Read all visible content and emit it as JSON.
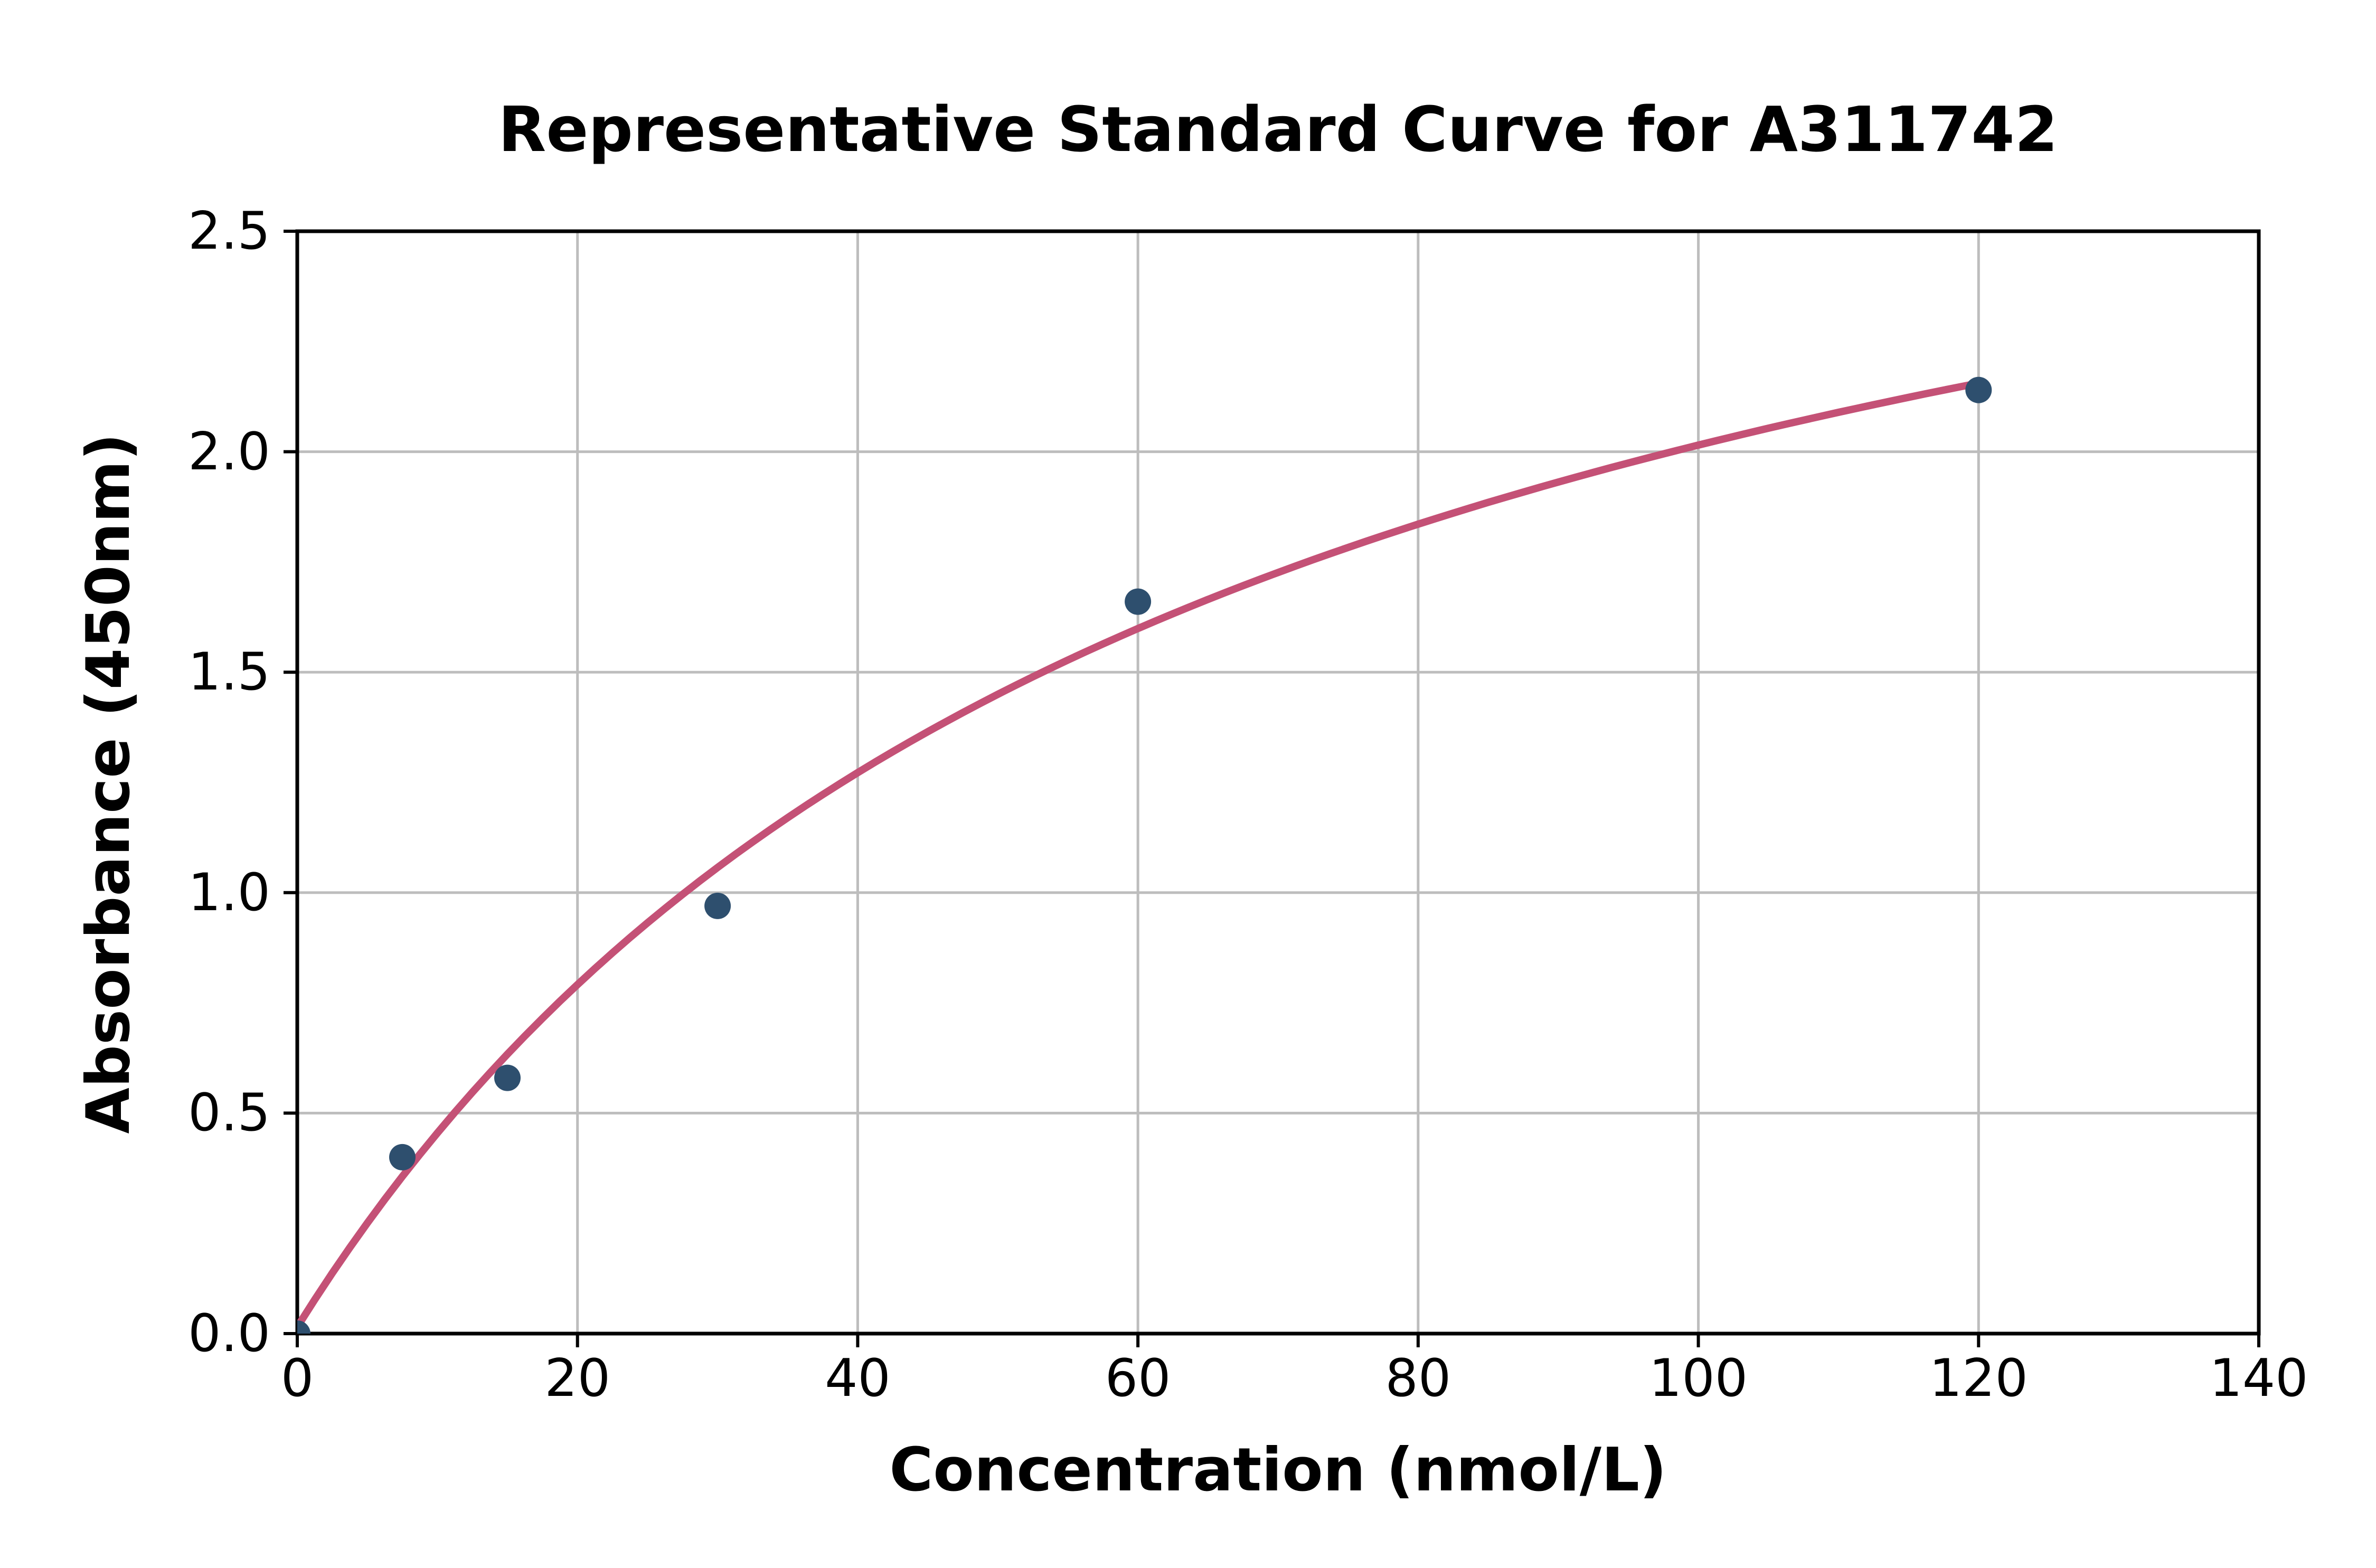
{
  "figure": {
    "background": "#ffffff"
  },
  "chart_data": {
    "type": "scatter",
    "title": "Representative Standard Curve for A311742",
    "xlabel": "Concentration (nmol/L)",
    "ylabel": "Absorbance (450nm)",
    "xlim": [
      0,
      140
    ],
    "ylim": [
      0,
      2.5
    ],
    "x_ticks": [
      "0",
      "20",
      "40",
      "60",
      "80",
      "100",
      "120",
      "140"
    ],
    "x_tick_values": [
      0,
      20,
      40,
      60,
      80,
      100,
      120,
      140
    ],
    "y_ticks": [
      "0.0",
      "0.5",
      "1.0",
      "1.5",
      "2.0",
      "2.5"
    ],
    "y_tick_values": [
      0,
      0.5,
      1.0,
      1.5,
      2.0,
      2.5
    ],
    "grid": true,
    "legend": "none",
    "series": [
      {
        "name": "standard-points",
        "type": "scatter",
        "points": [
          {
            "x": 0,
            "y": 0.0
          },
          {
            "x": 7.5,
            "y": 0.4
          },
          {
            "x": 15,
            "y": 0.58
          },
          {
            "x": 30,
            "y": 0.97
          },
          {
            "x": 60,
            "y": 1.66
          },
          {
            "x": 120,
            "y": 2.14
          }
        ]
      },
      {
        "name": "fitted-curve",
        "type": "line",
        "model": "saturation fit: y = offset + a*x/(b+x)",
        "params": {
          "offset": 0.015,
          "a": 3.3,
          "b": 65
        },
        "x_range": [
          0,
          120
        ]
      }
    ],
    "colors": {
      "marker": "#2e4f6e",
      "curve": "#c45176",
      "grid": "#bdbdbd",
      "axis": "#000000",
      "text": "#000000"
    }
  }
}
